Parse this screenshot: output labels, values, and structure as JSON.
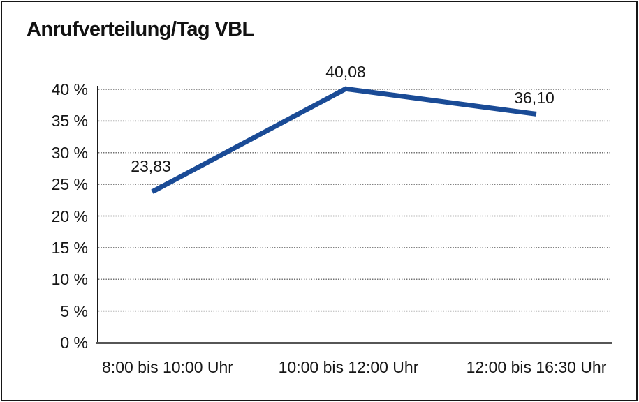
{
  "chart_data": {
    "type": "line",
    "title": "Anrufverteilung/Tag VBL",
    "categories": [
      "8:00 bis 10:00 Uhr",
      "10:00 bis 12:00 Uhr",
      "12:00 bis 16:30 Uhr"
    ],
    "values": [
      23.83,
      40.08,
      36.1
    ],
    "value_labels": [
      "23,83",
      "40,08",
      "36,10"
    ],
    "xlabel": "",
    "ylabel": "",
    "ylim": [
      0,
      40
    ],
    "ytick_step": 5,
    "ytick_labels": [
      "0 %",
      "5 %",
      "10 %",
      "15 %",
      "20 %",
      "25 %",
      "30 %",
      "35 %",
      "40 %"
    ],
    "grid": "horizontal-dotted",
    "legend_position": "none",
    "line_color": "#1A4B96",
    "axis_color": "#1a1a1a",
    "grid_color": "#6e6e6e",
    "baseline_color": "#565656",
    "frame_border_color": "#161616",
    "background_color": "#ffffff"
  }
}
